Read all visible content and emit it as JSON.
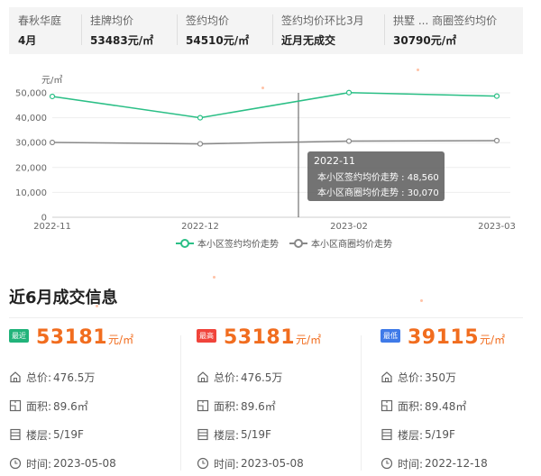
{
  "stats": [
    {
      "label": "春秋华庭",
      "value": "4月"
    },
    {
      "label": "挂牌均价",
      "value": "53483元/㎡"
    },
    {
      "label": "签约均价",
      "value": "54510元/㎡"
    },
    {
      "label": "签约均价环比3月",
      "value": "近月无成交"
    },
    {
      "label": "拱墅 ...    商圈签约均价",
      "value": "30790元/㎡"
    }
  ],
  "chart_data": {
    "type": "line",
    "categories": [
      "2022-11",
      "2022-12",
      "2023-02",
      "2023-03"
    ],
    "ylabel": "元/㎡",
    "ylim": [
      0,
      50000
    ],
    "yticks": [
      "0",
      "10,000",
      "20,000",
      "30,000",
      "40,000",
      "50,000"
    ],
    "grid": true,
    "series": [
      {
        "name": "本小区签约均价走势",
        "color": "#2bbf86",
        "values": [
          48560,
          40000,
          50100,
          48700
        ]
      },
      {
        "name": "本小区商圈均价走势",
        "color": "#888888",
        "values": [
          30070,
          29500,
          30600,
          30800
        ]
      }
    ],
    "tooltip": {
      "title": "2022-11",
      "rows": [
        {
          "label": "本小区签约均价走势 : 48,560",
          "color": "#2bbf86"
        },
        {
          "label": "本小区商圈均价走势 : 30,070",
          "color": "#aaaaaa"
        }
      ]
    },
    "legend_position": "bottom"
  },
  "section": {
    "title": "近6月成交信息"
  },
  "cards": [
    {
      "badge": "最近",
      "badge_color": "#21b37a",
      "price": "53181",
      "unit": "元/㎡",
      "total_label": "总价:",
      "total": "476.5万",
      "area_label": "面积:",
      "area": "89.6㎡",
      "floor_label": "楼层:",
      "floor": "5/19F",
      "time_label": "时间:",
      "time": "2023-05-08"
    },
    {
      "badge": "最高",
      "badge_color": "#f0443b",
      "price": "53181",
      "unit": "元/㎡",
      "total_label": "总价:",
      "total": "476.5万",
      "area_label": "面积:",
      "area": "89.6㎡",
      "floor_label": "楼层:",
      "floor": "5/19F",
      "time_label": "时间:",
      "time": "2023-05-08"
    },
    {
      "badge": "最低",
      "badge_color": "#3f7ae8",
      "price": "39115",
      "unit": "元/㎡",
      "total_label": "总价:",
      "total": "350万",
      "area_label": "面积:",
      "area": "89.48㎡",
      "floor_label": "楼层:",
      "floor": "5/19F",
      "time_label": "时间:",
      "time": "2022-12-18"
    }
  ],
  "icons": {
    "total": "house-icon",
    "area": "floorplan-icon",
    "floor": "building-icon",
    "time": "clock-icon"
  }
}
